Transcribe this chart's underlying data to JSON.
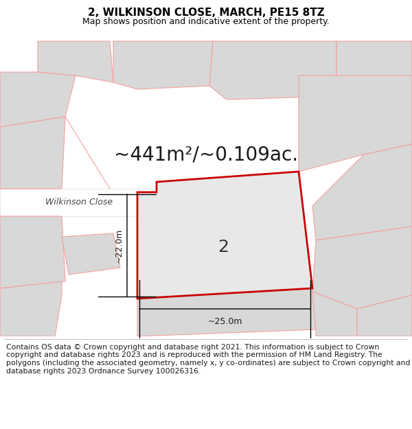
{
  "title": "2, WILKINSON CLOSE, MARCH, PE15 8TZ",
  "subtitle": "Map shows position and indicative extent of the property.",
  "area_label": "~441m²/~0.109ac.",
  "plot_number": "2",
  "dim_width": "~25.0m",
  "dim_height": "~22.0m",
  "road_label": "Wilkinson Close",
  "footer": "Contains OS data © Crown copyright and database right 2021. This information is subject to Crown copyright and database rights 2023 and is reproduced with the permission of HM Land Registry. The polygons (including the associated geometry, namely x, y co-ordinates) are subject to Crown copyright and database rights 2023 Ordnance Survey 100026316.",
  "bg_color": "#ffffff",
  "map_bg": "#ffffff",
  "plot_fill": "#e8e8e8",
  "plot_edge": "#cc0000",
  "neighbor_fill": "#d8d8d8",
  "neighbor_edge": "#f5a0a0",
  "road_fill": "#ffffff",
  "title_fontsize": 11,
  "subtitle_fontsize": 9,
  "area_fontsize": 20,
  "footer_fontsize": 7.8,
  "road_label_fontsize": 9,
  "plot_num_fontsize": 18,
  "dim_fontsize": 9
}
